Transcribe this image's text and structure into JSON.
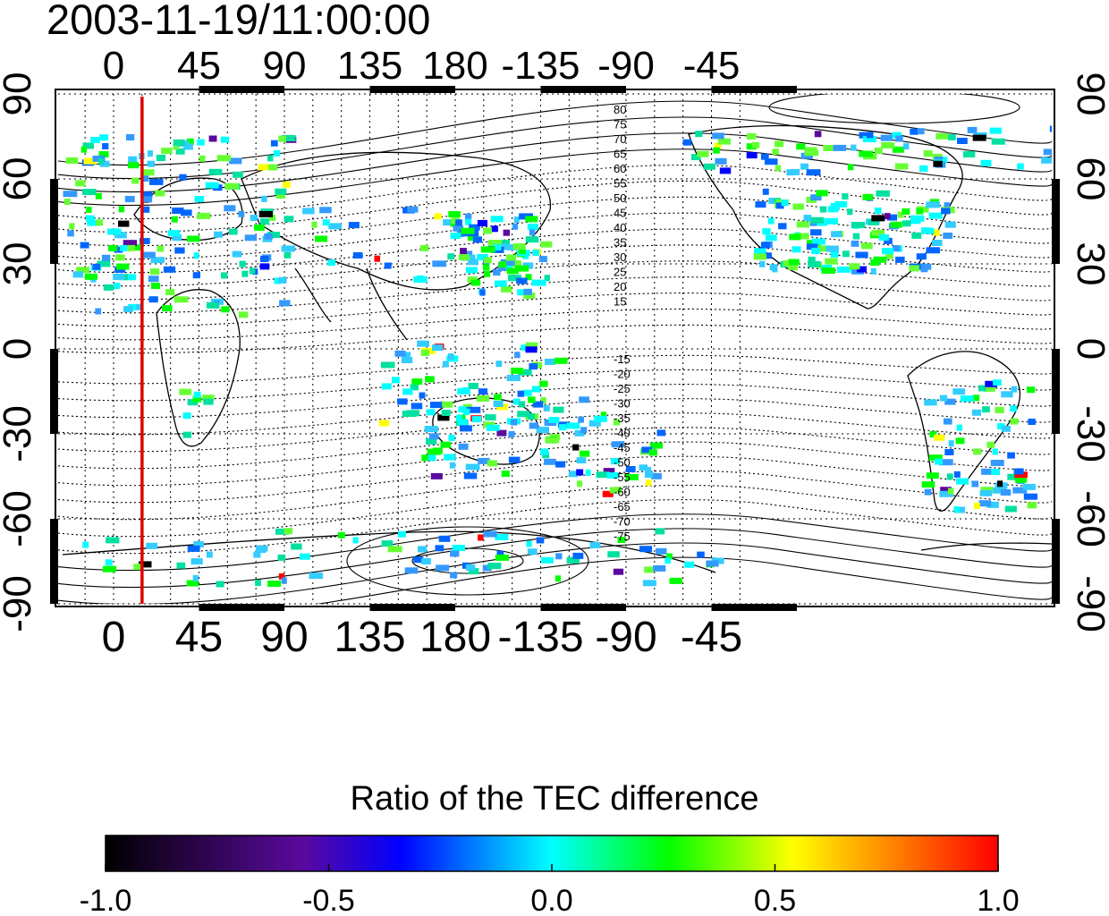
{
  "header": {
    "timestamp": "2003-11-19/11:00:00"
  },
  "map": {
    "x_ticks_top": [
      "0",
      "45",
      "90",
      "135",
      "180",
      "-135",
      "-90",
      "-45"
    ],
    "x_ticks_bottom": [
      "0",
      "45",
      "90",
      "135",
      "180",
      "-135",
      "-90",
      "-45"
    ],
    "y_ticks_left": [
      "90",
      "60",
      "30",
      "0",
      "-30",
      "-60",
      "-90"
    ],
    "y_ticks_right": [
      "90",
      "60",
      "30",
      "0",
      "-30",
      "-60",
      "-90"
    ],
    "contour_labels_north": [
      "80",
      "75",
      "70",
      "65",
      "60",
      "55",
      "50",
      "45",
      "40",
      "35",
      "30",
      "25",
      "20",
      "15"
    ],
    "contour_labels_south": [
      "-15",
      "-20",
      "-25",
      "-30",
      "-35",
      "-40",
      "-45",
      "-50",
      "-55",
      "-60",
      "-65",
      "-70",
      "-75"
    ],
    "marker_longitude": 15,
    "marker_color": "#e00000"
  },
  "colorbar": {
    "title": "Ratio of the TEC difference",
    "tick_labels": [
      "-1.0",
      "-0.5",
      "0.0",
      "0.5",
      "1.0"
    ],
    "range": [
      -1.0,
      1.0
    ],
    "colors": [
      "#000000",
      "#5a0a9c",
      "#0000ff",
      "#00ffff",
      "#00ff00",
      "#ffff00",
      "#ff0000"
    ]
  }
}
